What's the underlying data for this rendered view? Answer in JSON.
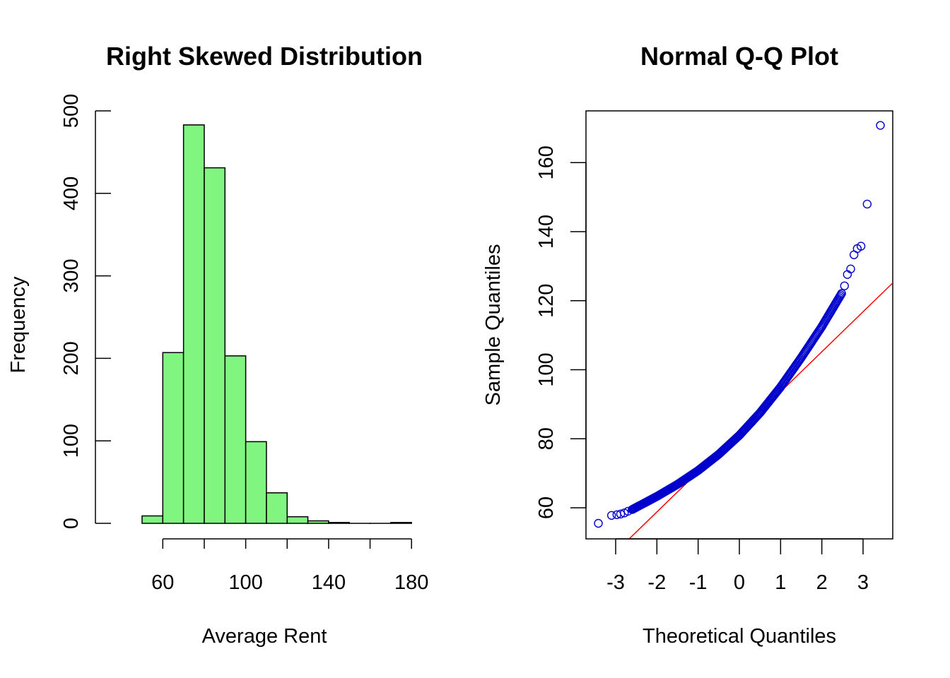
{
  "chart_data": [
    {
      "type": "bar",
      "title": "Right Skewed Distribution",
      "xlabel": "Average Rent",
      "ylabel": "Frequency",
      "bins": [
        {
          "from": 50,
          "to": 60,
          "count": 9
        },
        {
          "from": 60,
          "to": 70,
          "count": 207
        },
        {
          "from": 70,
          "to": 80,
          "count": 483
        },
        {
          "from": 80,
          "to": 90,
          "count": 431
        },
        {
          "from": 90,
          "to": 100,
          "count": 203
        },
        {
          "from": 100,
          "to": 110,
          "count": 99
        },
        {
          "from": 110,
          "to": 120,
          "count": 37
        },
        {
          "from": 120,
          "to": 130,
          "count": 8
        },
        {
          "from": 130,
          "to": 140,
          "count": 3
        },
        {
          "from": 140,
          "to": 150,
          "count": 1
        },
        {
          "from": 150,
          "to": 160,
          "count": 0
        },
        {
          "from": 160,
          "to": 170,
          "count": 0
        },
        {
          "from": 170,
          "to": 180,
          "count": 1
        }
      ],
      "xticks": [
        60,
        100,
        140,
        180
      ],
      "yticks": [
        0,
        100,
        200,
        300,
        400,
        500
      ],
      "xlim": [
        35,
        183
      ],
      "ylim": [
        0,
        500
      ],
      "bar_color": "#80f580"
    },
    {
      "type": "scatter",
      "title": "Normal Q-Q Plot",
      "xlabel": "Theoretical Quantiles",
      "ylabel": "Sample Quantiles",
      "xlim": [
        -3.72,
        3.72
      ],
      "ylim": [
        51,
        175
      ],
      "xticks": [
        -3,
        -2,
        -1,
        0,
        1,
        2,
        3
      ],
      "yticks": [
        60,
        80,
        100,
        120,
        140,
        160
      ],
      "point_color": "#0000cd",
      "line_color": "#ff0000",
      "reference_line": {
        "intercept": 82,
        "slope": 11.6
      },
      "outliers": [
        [
          -3.42,
          55.5
        ],
        [
          -3.1,
          57.8
        ],
        [
          -2.97,
          58.0
        ],
        [
          -2.88,
          58.2
        ],
        [
          -2.79,
          58.5
        ],
        [
          -2.7,
          59.0
        ],
        [
          2.55,
          124.3
        ],
        [
          2.62,
          127.6
        ],
        [
          2.7,
          129.2
        ],
        [
          2.78,
          133.3
        ],
        [
          2.86,
          135.1
        ],
        [
          2.95,
          135.8
        ],
        [
          3.1,
          148.0
        ],
        [
          3.42,
          170.8
        ]
      ],
      "curve_knots": [
        [
          -2.6,
          59.5
        ],
        [
          -2.0,
          63.3
        ],
        [
          -1.5,
          66.8
        ],
        [
          -1.0,
          70.8
        ],
        [
          -0.5,
          75.5
        ],
        [
          0.0,
          81.0
        ],
        [
          0.5,
          87.5
        ],
        [
          1.0,
          95.0
        ],
        [
          1.5,
          103.5
        ],
        [
          2.0,
          112.5
        ],
        [
          2.3,
          118.5
        ],
        [
          2.5,
          122.5
        ]
      ]
    }
  ]
}
